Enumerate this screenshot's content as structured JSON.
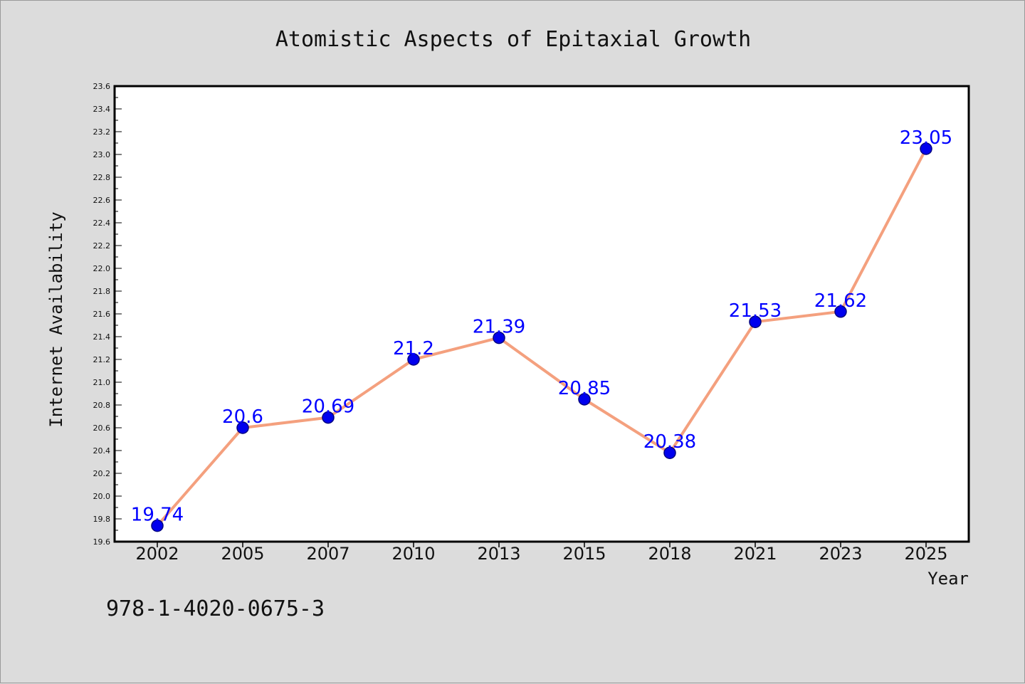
{
  "chart_data": {
    "type": "line",
    "title": "Atomistic Aspects of Epitaxial Growth",
    "xlabel": "Year",
    "ylabel": "Internet Availability",
    "categories": [
      "2002",
      "2005",
      "2007",
      "2010",
      "2013",
      "2015",
      "2018",
      "2021",
      "2023",
      "2025"
    ],
    "series": [
      {
        "values": [
          19.74,
          20.6,
          20.69,
          21.2,
          21.39,
          20.85,
          20.38,
          21.53,
          21.62,
          23.05
        ]
      }
    ],
    "data_labels": [
      "19.74",
      "20.6",
      "20.69",
      "21.2",
      "21.39",
      "20.85",
      "20.38",
      "21.53",
      "21.62",
      "23.05"
    ],
    "ylim": [
      19.6,
      23.6
    ],
    "yticks": [
      "19.6",
      "19.8",
      "20.0",
      "20.2",
      "20.4",
      "20.6",
      "20.8",
      "21.0",
      "21.2",
      "21.4",
      "21.6",
      "21.8",
      "22.0",
      "22.2",
      "22.4",
      "22.6",
      "22.8",
      "23.0",
      "23.2",
      "23.4",
      "23.6"
    ],
    "grid": false,
    "legend": "none",
    "colors": {
      "line": "#f4a07e",
      "marker": "#0000ee",
      "marker_edge": "#000080",
      "data_label": "#0000ff",
      "plot_background": "#ffffff",
      "page_background": "#dcdcdc"
    }
  },
  "footnote": "978-1-4020-0675-3"
}
